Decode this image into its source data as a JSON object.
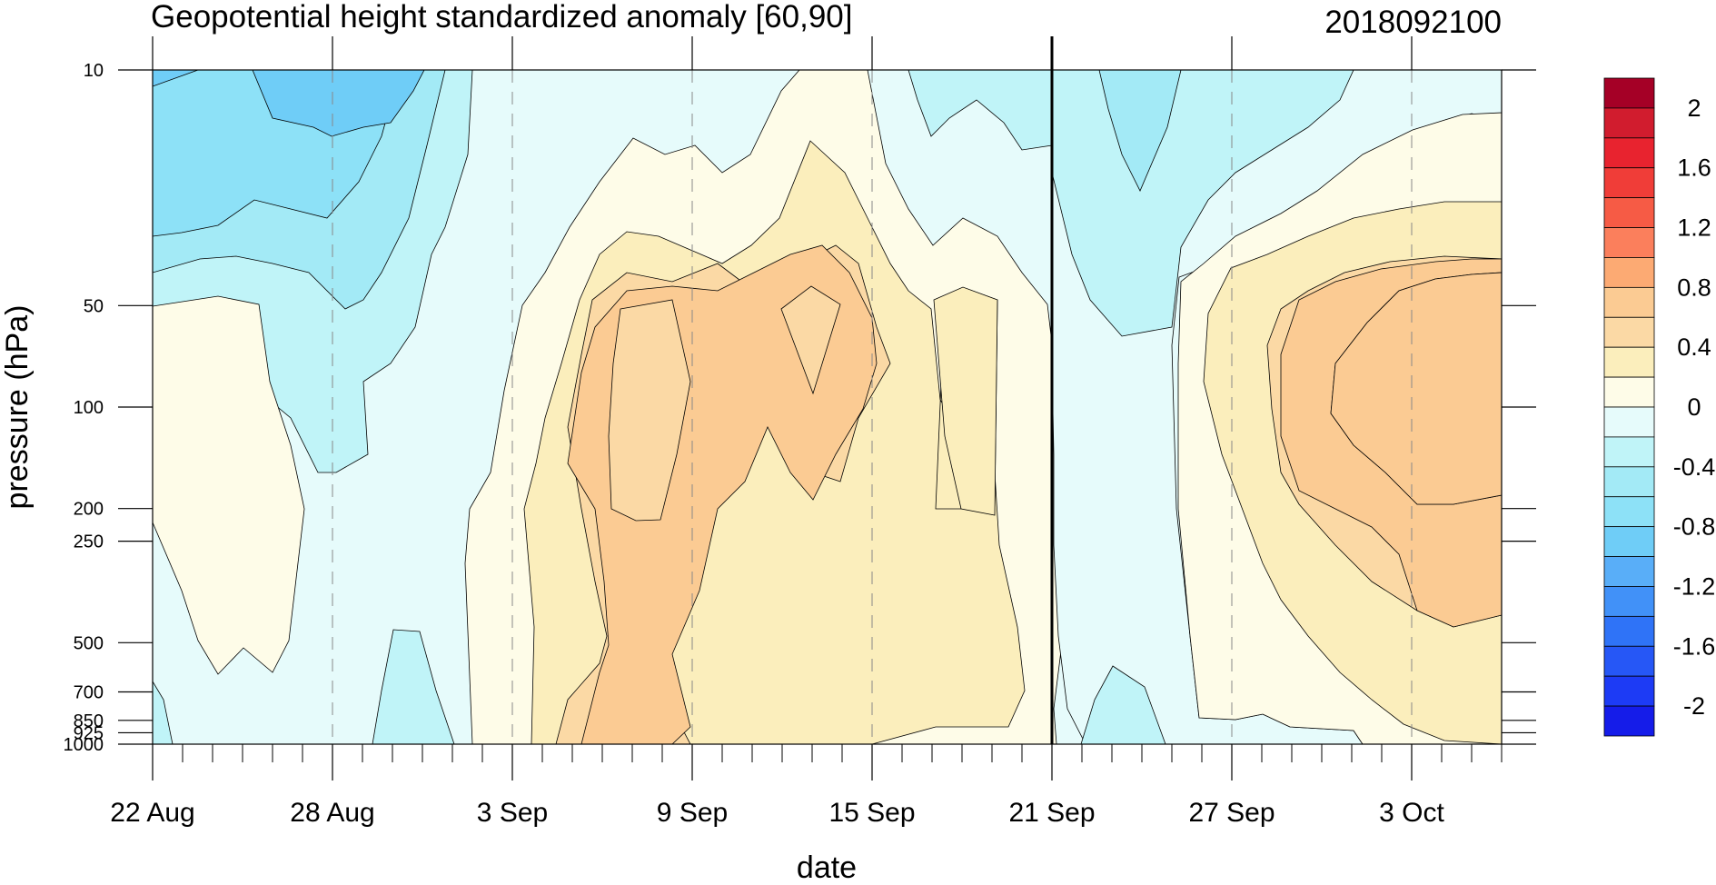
{
  "chart_data": {
    "type": "heatmap",
    "subtype": "filled-contour",
    "title": "Geopotential height standardized anomaly [60,90]",
    "date_stamp": "2018092100",
    "xlabel": "date",
    "ylabel": "pressure (hPa)",
    "x_range_days": [
      0,
      45
    ],
    "x_ticks": [
      {
        "day": 0,
        "label": "22 Aug"
      },
      {
        "day": 6,
        "label": "28 Aug"
      },
      {
        "day": 12,
        "label": "3 Sep"
      },
      {
        "day": 18,
        "label": "9 Sep"
      },
      {
        "day": 24,
        "label": "15 Sep"
      },
      {
        "day": 30,
        "label": "21 Sep"
      },
      {
        "day": 36,
        "label": "27 Sep"
      },
      {
        "day": 42,
        "label": "3 Oct"
      }
    ],
    "current_day_marker": {
      "day": 30,
      "label": "21 Sep"
    },
    "y_scale": "log",
    "y_reversed": true,
    "y_range_hPa": [
      10,
      1000
    ],
    "y_ticks": [
      {
        "p": 10,
        "label": "10"
      },
      {
        "p": 50,
        "label": "50"
      },
      {
        "p": 100,
        "label": "100"
      },
      {
        "p": 200,
        "label": "200"
      },
      {
        "p": 250,
        "label": "250"
      },
      {
        "p": 500,
        "label": "500"
      },
      {
        "p": 700,
        "label": "700"
      },
      {
        "p": 850,
        "label": "850"
      },
      {
        "p": 925,
        "label": "925"
      },
      {
        "p": 1000,
        "label": "1000"
      }
    ],
    "colorbar": {
      "labels": [
        "2",
        "1.6",
        "1.2",
        "0.8",
        "0.4",
        "0",
        "-0.4",
        "-0.8",
        "-1.2",
        "-1.6",
        "-2"
      ],
      "levels": [
        2.2,
        2.0,
        1.8,
        1.6,
        1.4,
        1.2,
        1.0,
        0.8,
        0.6,
        0.4,
        0.2,
        0.0,
        -0.2,
        -0.4,
        -0.6,
        -0.8,
        -1.0,
        -1.2,
        -1.4,
        -1.6,
        -1.8,
        -2.0,
        -2.2
      ],
      "colors": [
        "#a50026",
        "#d11c2e",
        "#e8232f",
        "#f03d38",
        "#f65b45",
        "#fb7f5c",
        "#fcaa73",
        "#fbcb93",
        "#fbd9a5",
        "#fbeebc",
        "#fefce8",
        "#e6fbfb",
        "#c0f4f8",
        "#a3eaf6",
        "#8de1f7",
        "#6fcdf7",
        "#59aef8",
        "#4191f8",
        "#2f73f7",
        "#2657f6",
        "#1d3bf5",
        "#151ce9"
      ]
    },
    "grid": false,
    "legend": "right"
  }
}
